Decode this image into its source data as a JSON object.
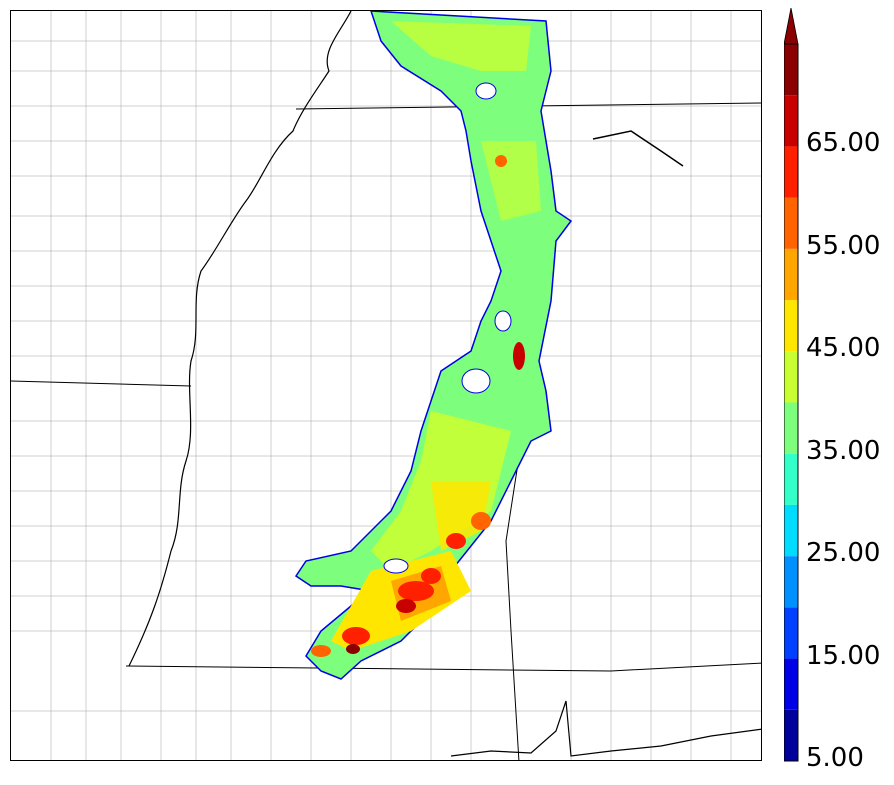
{
  "map": {
    "variable_scale_colors": [
      "#00009a",
      "#0000e6",
      "#0040ff",
      "#0090ff",
      "#00dcff",
      "#33ffc8",
      "#7dff7d",
      "#c8ff32",
      "#ffe600",
      "#ffa600",
      "#ff6400",
      "#ff2000",
      "#c80000",
      "#8b0000"
    ],
    "border_color": "#000000",
    "county_line_color": "#9a9a9a"
  },
  "colorbar": {
    "levels": [
      5,
      10,
      15,
      20,
      25,
      30,
      35,
      40,
      45,
      50,
      55,
      60,
      65,
      70
    ],
    "extend": "max",
    "tick_labels": [
      "5.00",
      "15.00",
      "25.00",
      "35.00",
      "45.00",
      "55.00",
      "65.00"
    ]
  }
}
